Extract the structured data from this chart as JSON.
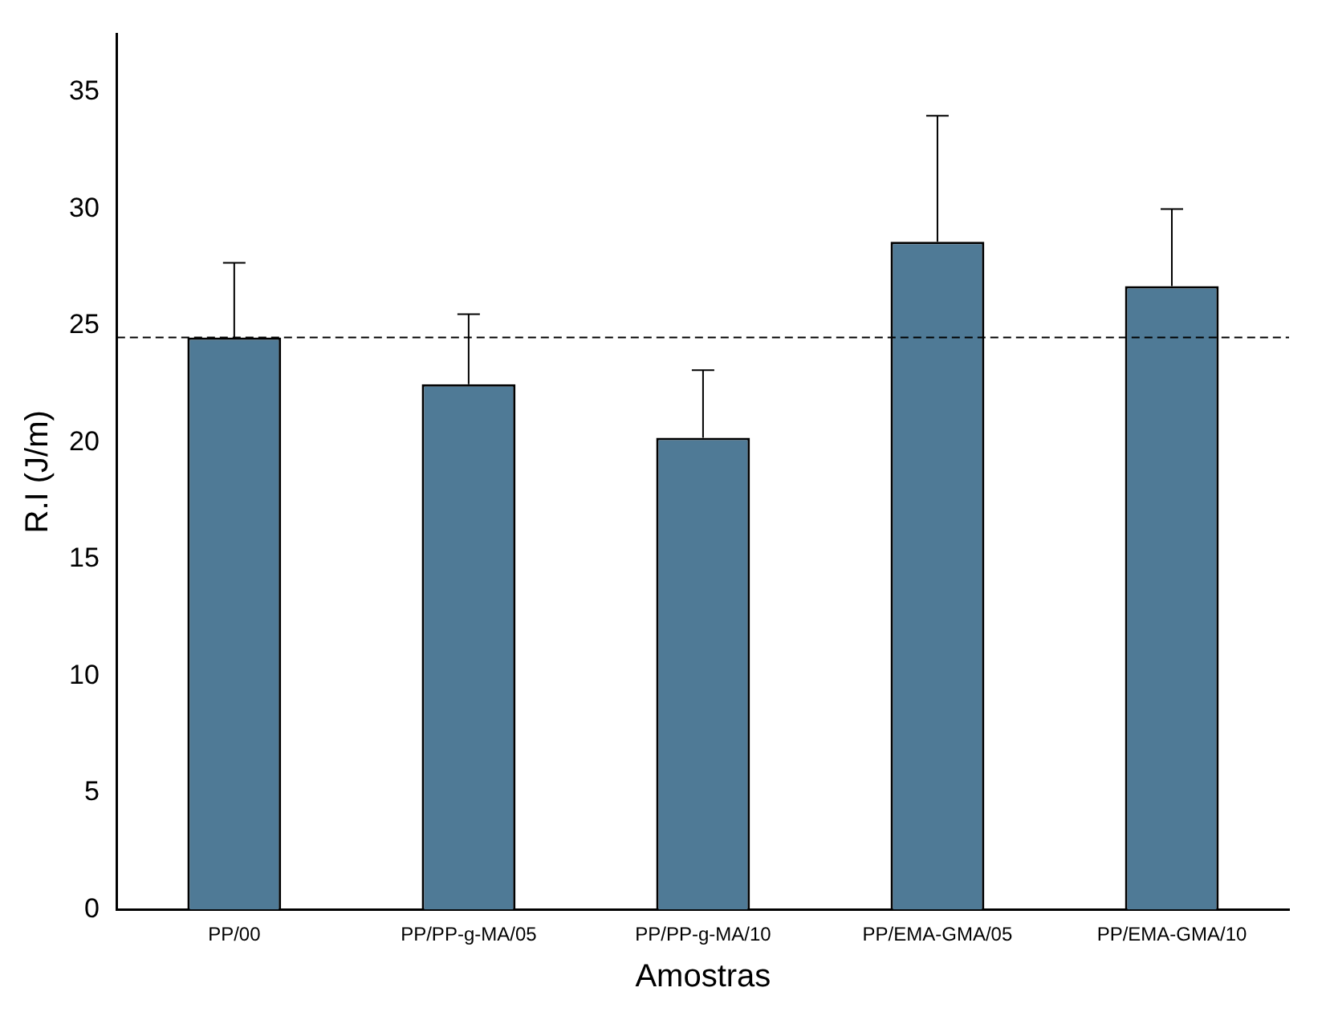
{
  "chart_data": {
    "type": "bar",
    "xlabel": "Amostras",
    "ylabel": "R.I (J/m)",
    "categories": [
      "PP/00",
      "PP/PP-g-MA/05",
      "PP/PP-g-MA/10",
      "PP/EMA-GMA/05",
      "PP/EMA-GMA/10"
    ],
    "values": [
      24.5,
      22.5,
      20.2,
      28.6,
      26.7
    ],
    "errors": [
      [
        24.5,
        27.7
      ],
      [
        22.5,
        25.5
      ],
      [
        20.2,
        23.1
      ],
      [
        28.6,
        34.0
      ],
      [
        26.7,
        30.0
      ]
    ],
    "color": "#4f7a96",
    "ylim": [
      0,
      37.5
    ],
    "yticks": [
      0,
      5,
      10,
      15,
      20,
      25,
      30,
      35
    ],
    "ref_lines": [
      {
        "axis": "y",
        "value": 24.5,
        "line_style": "dashed",
        "color": "#000000"
      }
    ],
    "grid": false,
    "legend": false
  }
}
